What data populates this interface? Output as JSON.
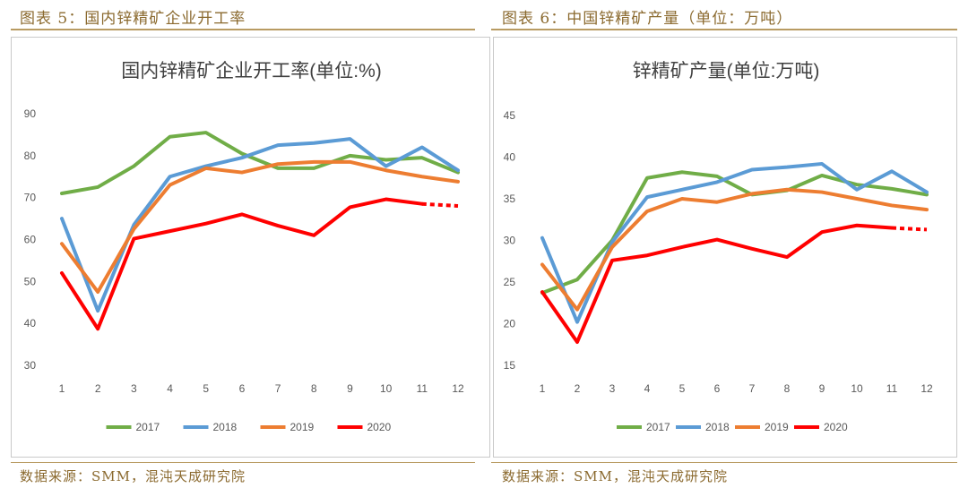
{
  "left": {
    "figure_title": "图表 5：国内锌精矿企业开工率",
    "source": "数据来源：SMM，混沌天成研究院"
  },
  "right": {
    "figure_title": "图表 6：中国锌精矿产量（单位：万吨）",
    "source": "数据来源：SMM，混沌天成研究院"
  },
  "chart_data": [
    {
      "type": "line",
      "title": "国内锌精矿企业开工率(单位:%)",
      "xlabel": "",
      "ylabel": "",
      "x": [
        1,
        2,
        3,
        4,
        5,
        6,
        7,
        8,
        9,
        10,
        11,
        12
      ],
      "ylim": [
        30,
        90
      ],
      "yticks": [
        30,
        40,
        50,
        60,
        70,
        80,
        90
      ],
      "grid": false,
      "legend": "bottom",
      "series": [
        {
          "name": "2017",
          "color": "#70ad47",
          "values": [
            71,
            72.5,
            77.5,
            84.5,
            85.5,
            80.5,
            77,
            77,
            80,
            79,
            79.5,
            76
          ]
        },
        {
          "name": "2018",
          "color": "#5b9bd5",
          "values": [
            65,
            43,
            63.5,
            75,
            77.5,
            79.5,
            82.5,
            83,
            84,
            77.5,
            82,
            76.5
          ]
        },
        {
          "name": "2019",
          "color": "#ed7d31",
          "values": [
            59,
            47.5,
            62.5,
            73,
            77,
            76,
            78,
            78.5,
            78.5,
            76.5,
            75,
            73.8
          ]
        },
        {
          "name": "2020",
          "color": "#ff0000",
          "values": [
            52,
            38.7,
            60.2,
            62,
            63.8,
            66,
            63.3,
            61,
            67.7,
            69.6,
            68.5,
            68
          ],
          "dashed_from_index": 10
        }
      ]
    },
    {
      "type": "line",
      "title": "锌精矿产量(单位:万吨)",
      "xlabel": "",
      "ylabel": "",
      "x": [
        1,
        2,
        3,
        4,
        5,
        6,
        7,
        8,
        9,
        10,
        11,
        12
      ],
      "ylim": [
        15,
        45
      ],
      "yticks": [
        15,
        20,
        25,
        30,
        35,
        40,
        45
      ],
      "grid": false,
      "legend": "bottom",
      "series": [
        {
          "name": "2017",
          "color": "#70ad47",
          "values": [
            23.7,
            25.3,
            30,
            37.5,
            38.2,
            37.7,
            35.5,
            36,
            37.8,
            36.7,
            36.2,
            35.5
          ]
        },
        {
          "name": "2018",
          "color": "#5b9bd5",
          "values": [
            30.3,
            20.2,
            29.8,
            35.2,
            36.1,
            37,
            38.5,
            38.8,
            39.2,
            36.1,
            38.3,
            35.8
          ]
        },
        {
          "name": "2019",
          "color": "#ed7d31",
          "values": [
            27.1,
            21.7,
            29.2,
            33.5,
            35,
            34.6,
            35.6,
            36.1,
            35.8,
            35,
            34.2,
            33.7
          ]
        },
        {
          "name": "2020",
          "color": "#ff0000",
          "values": [
            23.8,
            17.8,
            27.6,
            28.2,
            29.2,
            30.1,
            29,
            28,
            31,
            31.8,
            31.5,
            31.3
          ],
          "dashed_from_index": 10
        }
      ]
    }
  ]
}
